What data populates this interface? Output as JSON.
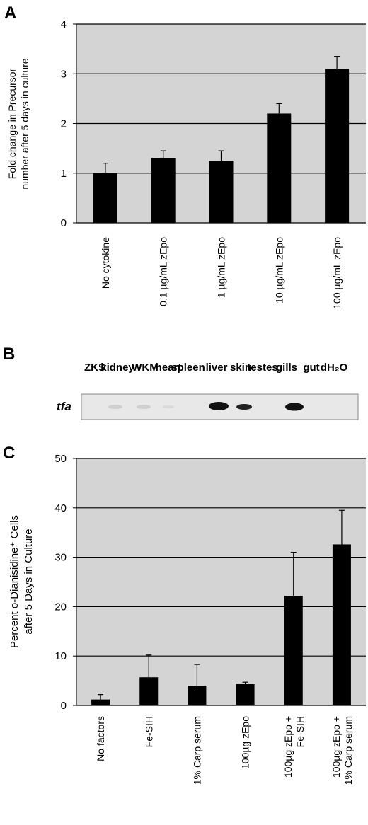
{
  "chart_data": [
    {
      "type": "bar",
      "panel_label": "A",
      "ylabel": [
        "Fold change in Precursor",
        "number after 5 days in culture"
      ],
      "categories": [
        "No cytokine",
        "0.1 µg/mL zEpo",
        "1 µg/mL zEpo",
        "10 µg/mL zEpo",
        "100 µg/mL zEpo"
      ],
      "values": [
        1.0,
        1.3,
        1.25,
        2.2,
        3.1
      ],
      "errors": [
        0.2,
        0.15,
        0.2,
        0.2,
        0.25
      ],
      "color": "#000000",
      "background": "#d4d4d4",
      "ylim": [
        0,
        4
      ],
      "yticks": [
        0,
        1,
        2,
        3,
        4
      ],
      "grid": true
    },
    {
      "type": "bar",
      "panel_label": "C",
      "ylabel": [
        "Percent o-Dianisidine⁺ Cells",
        "after 5 Days in Culture"
      ],
      "categories": [
        "No factors",
        "Fe-SIH",
        "1% Carp serum",
        "100µg zEpo",
        "100µg zEpo +\nFe-SIH",
        "100µg zEpo +\n1% Carp serum"
      ],
      "values": [
        1.2,
        5.7,
        4.0,
        4.3,
        22.2,
        32.6
      ],
      "errors": [
        1.0,
        4.5,
        4.3,
        0.4,
        8.8,
        6.9
      ],
      "color": "#000000",
      "background": "#d4d4d4",
      "ylim": [
        0,
        50
      ],
      "yticks": [
        0,
        10,
        20,
        30,
        40,
        50
      ],
      "grid": true
    }
  ],
  "gel": {
    "panel_label": "B",
    "row_label": "tfa",
    "lanes": [
      "ZKS",
      "kidney",
      "WKM",
      "heart",
      "spleen",
      "liver",
      "skin",
      "testes",
      "gills",
      "gut",
      "dH₂O"
    ]
  }
}
